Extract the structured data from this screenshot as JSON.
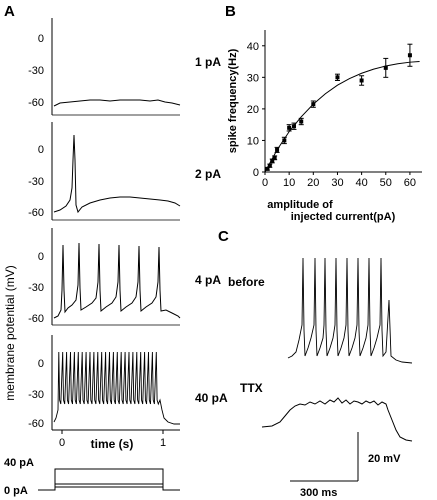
{
  "panel_labels": {
    "a": "A",
    "b": "B",
    "c": "C"
  },
  "panel_a": {
    "ylabel": "membrane potential (mV)",
    "xlabel": "time (s)",
    "x_ticks": [
      "0",
      "1"
    ],
    "traces": [
      {
        "current": "1 pA",
        "y_ticks": [
          "0",
          "-30",
          "-60"
        ]
      },
      {
        "current": "2 pA",
        "y_ticks": [
          "0",
          "-30",
          "-60"
        ]
      },
      {
        "current": "4 pA",
        "y_ticks": [
          "0",
          "-30",
          "-60"
        ]
      },
      {
        "current": "40 pA",
        "y_ticks": [
          "0",
          "-30",
          "-60"
        ]
      }
    ],
    "stimulus": {
      "top_label": "40 pA",
      "bottom_label": "0 pA"
    }
  },
  "chart_data": {
    "type": "scatter",
    "ylabel": "spike frequency(Hz)",
    "xlabel_line1": "amplitude of",
    "xlabel_line2": "injected current(pA)",
    "xlim": [
      0,
      65
    ],
    "ylim": [
      0,
      45
    ],
    "x_ticks": [
      0,
      10,
      20,
      30,
      40,
      50,
      60
    ],
    "y_ticks": [
      0,
      10,
      20,
      30,
      40
    ],
    "points": [
      {
        "x": 1,
        "y": 1,
        "err": 0.4
      },
      {
        "x": 2,
        "y": 2,
        "err": 0.5
      },
      {
        "x": 3,
        "y": 3.5,
        "err": 0.6
      },
      {
        "x": 4,
        "y": 4.5,
        "err": 0.6
      },
      {
        "x": 5,
        "y": 7,
        "err": 0.8
      },
      {
        "x": 8,
        "y": 10,
        "err": 1
      },
      {
        "x": 10,
        "y": 14,
        "err": 1
      },
      {
        "x": 12,
        "y": 14.5,
        "err": 1
      },
      {
        "x": 15,
        "y": 16,
        "err": 1
      },
      {
        "x": 20,
        "y": 21.5,
        "err": 1
      },
      {
        "x": 30,
        "y": 30,
        "err": 1
      },
      {
        "x": 40,
        "y": 29,
        "err": 1.5
      },
      {
        "x": 50,
        "y": 33,
        "err": 3
      },
      {
        "x": 60,
        "y": 37,
        "err": 3.5
      }
    ],
    "fit": [
      [
        0,
        0
      ],
      [
        5,
        7
      ],
      [
        10,
        12.8
      ],
      [
        15,
        17.5
      ],
      [
        20,
        21.5
      ],
      [
        25,
        24.8
      ],
      [
        30,
        27.5
      ],
      [
        35,
        29.6
      ],
      [
        40,
        31.3
      ],
      [
        45,
        32.6
      ],
      [
        50,
        33.6
      ],
      [
        55,
        34.3
      ],
      [
        60,
        34.8
      ],
      [
        64,
        35
      ]
    ]
  },
  "panel_c": {
    "before_label": "before",
    "ttx_label": "TTX",
    "scale_v": "20 mV",
    "scale_t": "300 ms"
  }
}
